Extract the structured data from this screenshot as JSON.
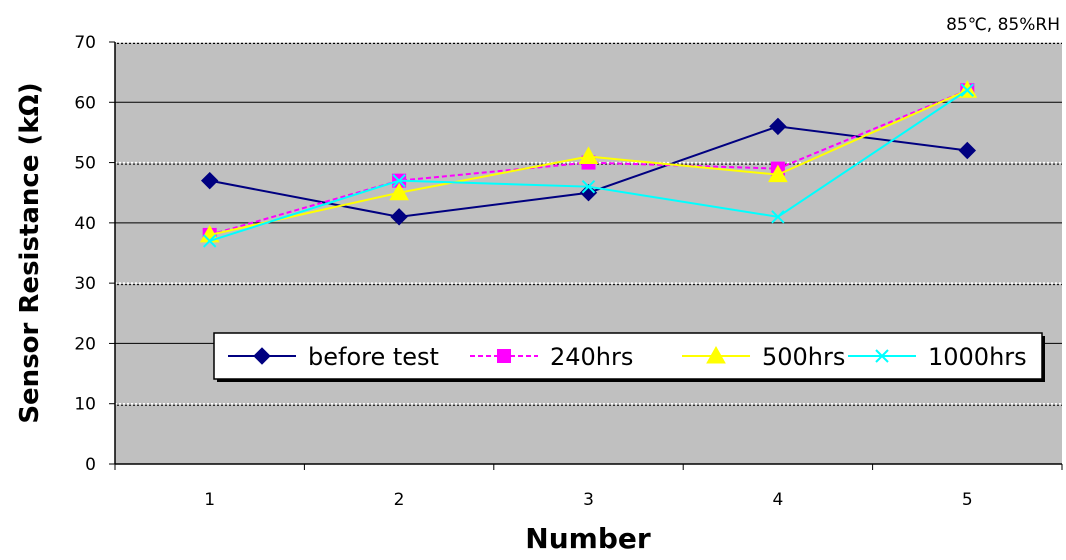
{
  "chart_data": {
    "type": "line",
    "title": "",
    "annotation": "85℃, 85%RH",
    "xlabel": "Number",
    "ylabel": "Sensor Resistance (kΩ)",
    "categories": [
      "1",
      "2",
      "3",
      "4",
      "5"
    ],
    "ylim": [
      0,
      70
    ],
    "yticks": [
      0,
      10,
      20,
      30,
      40,
      50,
      60,
      70
    ],
    "grid": true,
    "legend_position": "bottom-right inside plot",
    "plot_background": "#c0c0c0",
    "series": [
      {
        "name": "before test",
        "color": "#000080",
        "marker": "diamond",
        "line_style": "solid",
        "values": [
          47,
          41,
          45,
          56,
          52
        ]
      },
      {
        "name": "240hrs",
        "color": "#ff00ff",
        "marker": "square",
        "line_style": "dashed",
        "values": [
          38,
          47,
          50,
          49,
          62
        ]
      },
      {
        "name": "500hrs",
        "color": "#ffff00",
        "marker": "triangle",
        "line_style": "solid",
        "values": [
          38,
          45,
          51,
          48,
          62
        ]
      },
      {
        "name": "1000hrs",
        "color": "#00ffff",
        "marker": "x",
        "line_style": "solid",
        "values": [
          37,
          47,
          46,
          41,
          62
        ]
      }
    ]
  }
}
